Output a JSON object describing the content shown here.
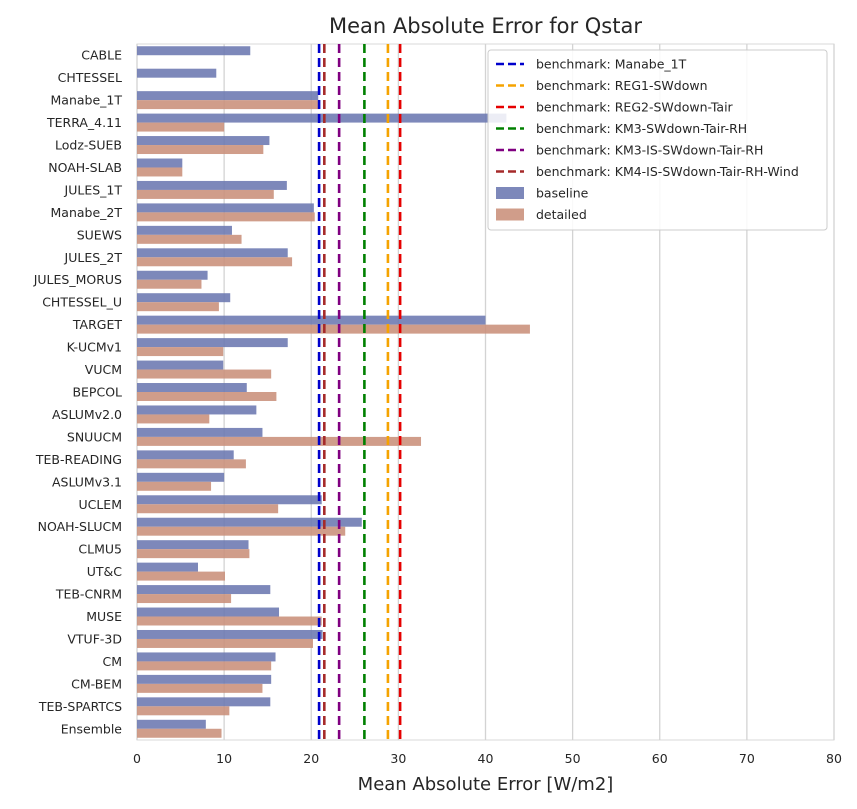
{
  "chart_data": {
    "type": "bar",
    "orientation": "horizontal",
    "title": "Mean Absolute Error for Qstar",
    "xlabel": "Mean Absolute Error [W/m2]",
    "ylabel": "",
    "xlim": [
      0,
      80
    ],
    "xticks": [
      "0",
      "10",
      "20",
      "30",
      "40",
      "50",
      "60",
      "70",
      "80"
    ],
    "grid": "vertical",
    "legend_position": "top-right",
    "categories": [
      "CABLE",
      "CHTESSEL",
      "Manabe_1T",
      "TERRA_4.11",
      "Lodz-SUEB",
      "NOAH-SLAB",
      "JULES_1T",
      "Manabe_2T",
      "SUEWS",
      "JULES_2T",
      "JULES_MORUS",
      "CHTESSEL_U",
      "TARGET",
      "K-UCMv1",
      "VUCM",
      "BEPCOL",
      "ASLUMv2.0",
      "SNUUCM",
      "TEB-READING",
      "ASLUMv3.1",
      "UCLEM",
      "NOAH-SLUCM",
      "CLMU5",
      "UT&C",
      "TEB-CNRM",
      "MUSE",
      "VTUF-3D",
      "CM",
      "CM-BEM",
      "TEB-SPARTCS",
      "Ensemble"
    ],
    "series": [
      {
        "name": "baseline",
        "color": "#6b77b1",
        "values": [
          13.0,
          9.1,
          20.8,
          42.4,
          15.2,
          5.2,
          17.2,
          20.3,
          10.9,
          17.3,
          8.1,
          10.7,
          40.0,
          17.3,
          9.9,
          12.6,
          13.7,
          14.4,
          11.1,
          10.0,
          21.2,
          25.8,
          12.8,
          7.0,
          15.3,
          16.3,
          21.3,
          15.9,
          15.4,
          15.3,
          7.9
        ]
      },
      {
        "name": "detailed",
        "color": "#c9907a",
        "values": [
          null,
          null,
          21.0,
          10.0,
          14.5,
          5.2,
          15.7,
          20.4,
          12.0,
          17.8,
          7.4,
          9.4,
          45.1,
          9.9,
          15.4,
          16.0,
          8.3,
          32.6,
          12.5,
          8.5,
          16.2,
          23.9,
          12.9,
          10.1,
          10.8,
          21.2,
          20.2,
          15.4,
          14.4,
          10.6,
          9.7
        ]
      }
    ],
    "benchmarks": [
      {
        "name": "benchmark: Manabe_1T",
        "value": 20.9,
        "color": "#0000cc"
      },
      {
        "name": "benchmark: REG1-SWdown",
        "value": 28.8,
        "color": "#f5a300"
      },
      {
        "name": "benchmark: REG2-SWdown-Tair",
        "value": 30.2,
        "color": "#e60000"
      },
      {
        "name": "benchmark: KM3-SWdown-Tair-RH",
        "value": 26.1,
        "color": "#008000"
      },
      {
        "name": "benchmark: KM3-IS-SWdown-Tair-RH",
        "value": 23.2,
        "color": "#800080"
      },
      {
        "name": "benchmark: KM4-IS-SWdown-Tair-RH-Wind",
        "value": 21.5,
        "color": "#a52a2a"
      }
    ]
  }
}
